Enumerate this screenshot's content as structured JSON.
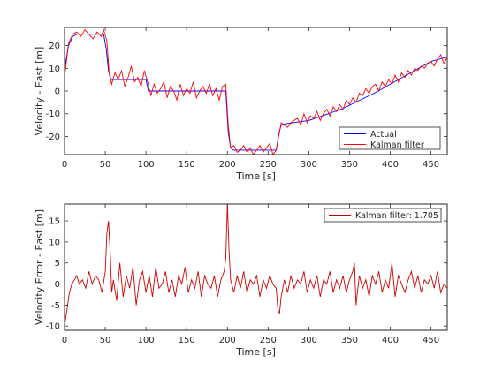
{
  "chart_data": [
    {
      "type": "line",
      "xlabel": "Time [s]",
      "ylabel": "Velocity - East [m]",
      "xlim": [
        0,
        470
      ],
      "ylim": [
        -28,
        28
      ],
      "xticks": [
        0,
        50,
        100,
        150,
        200,
        250,
        300,
        350,
        400,
        450
      ],
      "yticks": [
        -20,
        -10,
        0,
        10,
        20
      ],
      "grid": false,
      "legend_position": "bottom-right",
      "series": [
        {
          "name": "Actual",
          "color": "#0000ff",
          "x": [
            0,
            5,
            10,
            15,
            48,
            51,
            54,
            57,
            100,
            103,
            198,
            201,
            204,
            207,
            260,
            263,
            266,
            270,
            300,
            340,
            380,
            420,
            450,
            470
          ],
          "y": [
            10,
            20,
            24,
            25,
            25,
            19,
            9,
            5,
            5,
            0,
            0,
            -18,
            -25,
            -26,
            -26,
            -19,
            -15,
            -14.5,
            -13,
            -8,
            -1,
            7,
            13,
            15
          ]
        },
        {
          "name": "Kalman filter",
          "color": "#ff0000",
          "x": [
            0,
            5,
            10,
            15,
            20,
            25,
            30,
            35,
            40,
            45,
            48,
            52,
            55,
            58,
            62,
            66,
            70,
            74,
            78,
            82,
            86,
            90,
            94,
            98,
            102,
            106,
            110,
            114,
            118,
            122,
            126,
            130,
            134,
            138,
            142,
            146,
            150,
            154,
            158,
            162,
            166,
            170,
            174,
            178,
            182,
            186,
            190,
            194,
            198,
            201,
            204,
            208,
            212,
            216,
            220,
            224,
            228,
            232,
            236,
            240,
            244,
            248,
            252,
            256,
            260,
            263,
            266,
            270,
            274,
            278,
            282,
            286,
            290,
            294,
            298,
            302,
            306,
            310,
            314,
            318,
            322,
            326,
            330,
            334,
            338,
            342,
            346,
            350,
            354,
            358,
            362,
            366,
            370,
            374,
            378,
            382,
            386,
            390,
            394,
            398,
            402,
            406,
            410,
            414,
            418,
            422,
            426,
            430,
            434,
            438,
            442,
            446,
            450,
            454,
            458,
            462,
            466,
            470
          ],
          "y": [
            6,
            21,
            25,
            26,
            24,
            27,
            25,
            23,
            26,
            24,
            27,
            22,
            7,
            3,
            8,
            5,
            9,
            2,
            6,
            11,
            4,
            6,
            2,
            9,
            4,
            -2,
            3,
            -1,
            1,
            4,
            -3,
            2,
            0,
            -4,
            3,
            -2,
            1,
            -1,
            4,
            -3,
            0,
            2,
            -1,
            3,
            -2,
            1,
            -4,
            2,
            3,
            -15,
            -25,
            -24,
            -27,
            -26,
            -24,
            -27,
            -25,
            -28,
            -26,
            -24,
            -27,
            -25,
            -23,
            -28,
            -26,
            -20,
            -14,
            -15,
            -16,
            -14,
            -13,
            -12,
            -15,
            -10,
            -14,
            -11,
            -12,
            -9,
            -13,
            -10,
            -8,
            -11,
            -7,
            -9,
            -6,
            -8,
            -4,
            -6,
            -3,
            -5,
            -1,
            -2,
            1,
            -1,
            2,
            3,
            0,
            4,
            2,
            5,
            3,
            7,
            4,
            8,
            6,
            9,
            7,
            10,
            9,
            11,
            10,
            12,
            13,
            11,
            14,
            16,
            12,
            15
          ]
        }
      ]
    },
    {
      "type": "line",
      "xlabel": "Time [s]",
      "ylabel": "Velocity Error - East [m]",
      "xlim": [
        0,
        470
      ],
      "ylim": [
        -11,
        19
      ],
      "xticks": [
        0,
        50,
        100,
        150,
        200,
        250,
        300,
        350,
        400,
        450
      ],
      "yticks": [
        -10,
        -5,
        0,
        5,
        10,
        15
      ],
      "grid": false,
      "legend_position": "top-right",
      "series": [
        {
          "name": "Kalman filter: 1.705",
          "color": "#cc0000",
          "x": [
            0,
            3,
            6,
            9,
            12,
            15,
            18,
            22,
            26,
            30,
            34,
            38,
            42,
            46,
            50,
            52,
            54,
            56,
            58,
            60,
            64,
            68,
            72,
            76,
            80,
            84,
            88,
            92,
            96,
            100,
            104,
            108,
            112,
            116,
            120,
            124,
            128,
            132,
            136,
            140,
            144,
            148,
            152,
            156,
            160,
            164,
            168,
            172,
            176,
            180,
            184,
            188,
            192,
            196,
            198,
            200,
            202,
            204,
            208,
            212,
            216,
            220,
            224,
            228,
            232,
            236,
            240,
            244,
            248,
            252,
            256,
            260,
            262,
            264,
            266,
            270,
            274,
            278,
            282,
            286,
            290,
            294,
            298,
            302,
            306,
            310,
            314,
            318,
            322,
            326,
            330,
            334,
            338,
            342,
            346,
            350,
            354,
            356,
            358,
            362,
            366,
            370,
            374,
            378,
            382,
            386,
            390,
            394,
            398,
            402,
            406,
            410,
            414,
            418,
            422,
            426,
            430,
            434,
            438,
            442,
            446,
            450,
            454,
            458,
            462,
            466,
            470
          ],
          "y": [
            -10,
            -6,
            -2,
            0,
            1,
            2,
            0,
            1,
            -1,
            3,
            0,
            2,
            1,
            -2,
            3,
            12,
            15,
            8,
            -2,
            1,
            -4,
            5,
            -3,
            2,
            -1,
            4,
            -5,
            1,
            3,
            -2,
            2,
            -3,
            4,
            -1,
            0,
            3,
            -2,
            1,
            -3,
            2,
            0,
            4,
            -2,
            1,
            -1,
            3,
            -3,
            2,
            0,
            -1,
            2,
            -3,
            1,
            3,
            6,
            19,
            8,
            1,
            -2,
            2,
            -1,
            3,
            -2,
            1,
            0,
            2,
            -3,
            1,
            -1,
            2,
            0,
            -1,
            -6,
            -7,
            -3,
            1,
            -2,
            2,
            -1,
            1,
            0,
            3,
            -2,
            1,
            -1,
            2,
            -3,
            1,
            0,
            3,
            -2,
            1,
            -1,
            2,
            -2,
            1,
            3,
            5,
            -5,
            2,
            -1,
            1,
            -3,
            2,
            0,
            3,
            -2,
            1,
            -1,
            5,
            -3,
            2,
            0,
            -2,
            1,
            3,
            -1,
            2,
            -2,
            1,
            0,
            2,
            -1,
            3,
            -2,
            0,
            -1
          ]
        }
      ]
    }
  ]
}
